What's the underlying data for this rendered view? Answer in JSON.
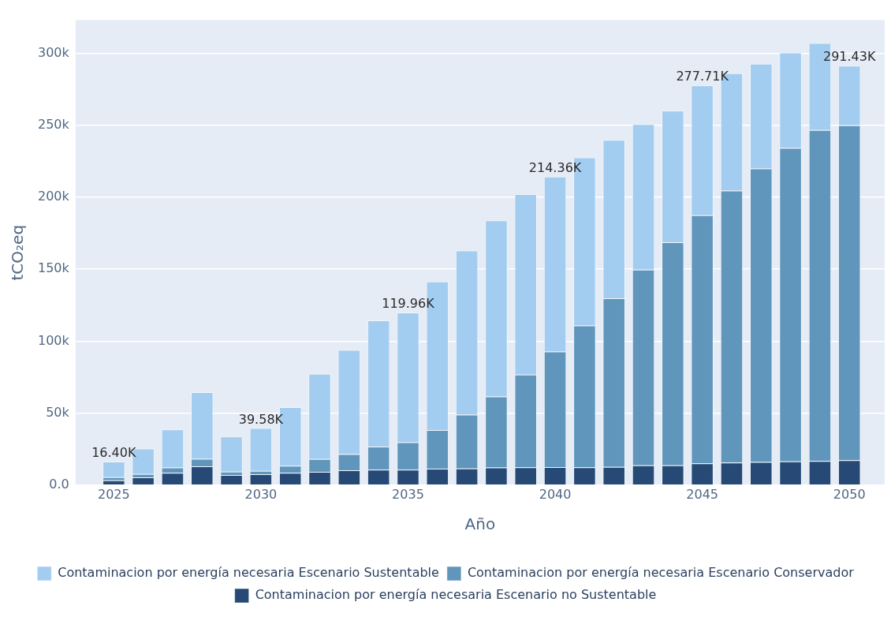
{
  "chart_data": {
    "type": "bar",
    "xlabel": "Año",
    "ylabel": "tCO₂eq",
    "stacked": true,
    "grid": "y",
    "legend": "bottom",
    "x": [
      2025,
      2026,
      2027,
      2028,
      2029,
      2030,
      2031,
      2032,
      2033,
      2034,
      2035,
      2036,
      2037,
      2038,
      2039,
      2040,
      2041,
      2042,
      2043,
      2044,
      2045,
      2046,
      2047,
      2048,
      2049,
      2050
    ],
    "xlim": [
      2023.7,
      2051.2
    ],
    "xticks": [
      2025,
      2030,
      2035,
      2040,
      2045,
      2050
    ],
    "ylim": [
      0,
      323000
    ],
    "yticks": [
      {
        "value": 0,
        "label": "0.0"
      },
      {
        "value": 50000,
        "label": "50k"
      },
      {
        "value": 100000,
        "label": "100k"
      },
      {
        "value": 150000,
        "label": "150k"
      },
      {
        "value": 200000,
        "label": "200k"
      },
      {
        "value": 250000,
        "label": "250k"
      },
      {
        "value": 300000,
        "label": "300k"
      }
    ],
    "series": [
      {
        "name": "Contaminacion por energía necesaria Escenario no Sustentable",
        "color": "#264a75",
        "values": [
          3300,
          5400,
          8500,
          13100,
          7000,
          7600,
          8500,
          9200,
          10300,
          10700,
          10700,
          11400,
          11600,
          12200,
          12300,
          12500,
          12300,
          12700,
          13700,
          13700,
          15100,
          15700,
          16100,
          16500,
          16700,
          17300
        ]
      },
      {
        "name": "Contaminacion por energía necesaria Escenario Conservador",
        "color": "#6096bb",
        "values": [
          2200,
          2300,
          3700,
          5100,
          2400,
          2300,
          4900,
          8900,
          11200,
          16000,
          19100,
          26900,
          37400,
          49300,
          64500,
          80300,
          98600,
          117100,
          136000,
          155100,
          172400,
          188900,
          203900,
          217800,
          230000,
          232700
        ]
      },
      {
        "name": "Contaminacion por energía necesaria Escenario Sustentable",
        "color": "#a3cdf0",
        "values": [
          10900,
          17700,
          26500,
          46400,
          24300,
          29700,
          40700,
          59200,
          72400,
          87700,
          90200,
          103100,
          114000,
          122500,
          125400,
          121600,
          116700,
          110000,
          101100,
          91400,
          90200,
          81600,
          72800,
          66300,
          60500,
          41400
        ]
      }
    ],
    "annotations": [
      {
        "text": "16.40K",
        "x": 2025,
        "y": 16400
      },
      {
        "text": "39.58K",
        "x": 2030,
        "y": 39580
      },
      {
        "text": "119.96K",
        "x": 2035,
        "y": 119960
      },
      {
        "text": "214.36K",
        "x": 2040,
        "y": 214360
      },
      {
        "text": "277.71K",
        "x": 2045,
        "y": 277710
      },
      {
        "text": "291.43K",
        "x": 2050,
        "y": 291430
      }
    ]
  }
}
